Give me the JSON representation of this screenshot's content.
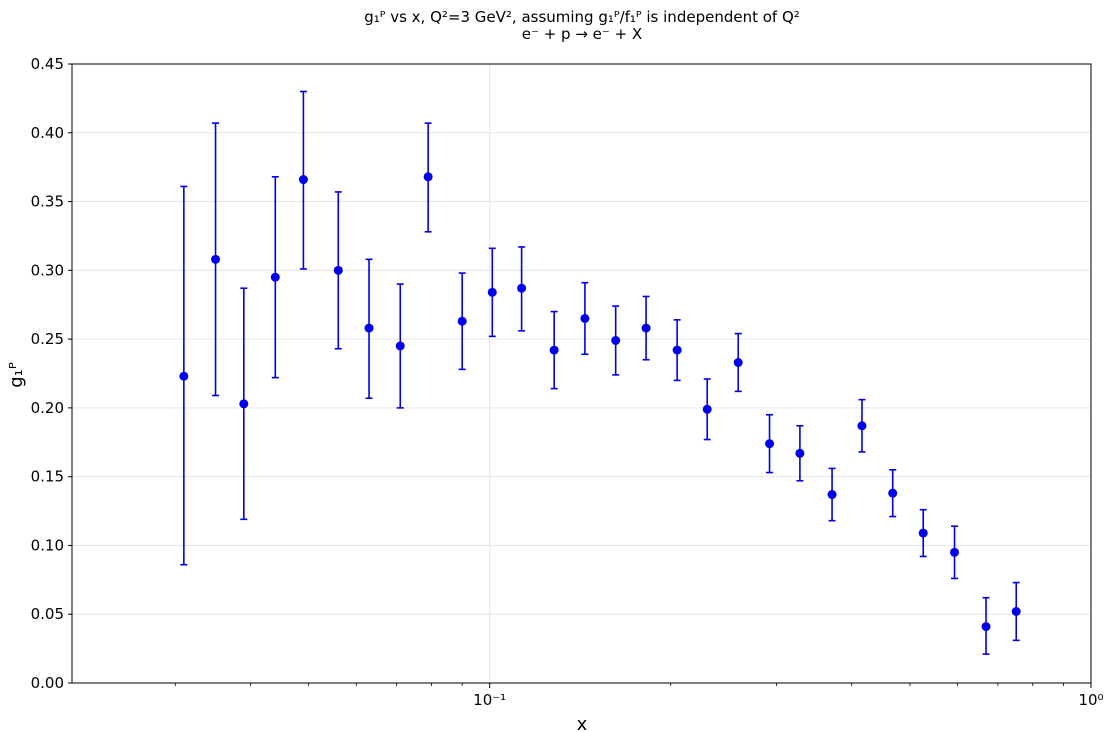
{
  "chart_data": {
    "type": "scatter",
    "title": "g₁ᴾ vs x, Q²=3 GeV², assuming g₁ᴾ/f₁ᴾ is independent of Q²",
    "subtitle": "e⁻ + p → e⁻ + X",
    "xlabel": "x",
    "ylabel": "g₁ᴾ",
    "xscale": "log",
    "xlim": [
      0.0202,
      1.0
    ],
    "ylim": [
      0.0,
      0.45
    ],
    "grid": true,
    "x_ticks": [
      {
        "value": 0.1,
        "label": "10⁻¹"
      },
      {
        "value": 1.0,
        "label": "10⁰"
      }
    ],
    "y_ticks": [
      {
        "value": 0.0,
        "label": "0.00"
      },
      {
        "value": 0.05,
        "label": "0.05"
      },
      {
        "value": 0.1,
        "label": "0.10"
      },
      {
        "value": 0.15,
        "label": "0.15"
      },
      {
        "value": 0.2,
        "label": "0.20"
      },
      {
        "value": 0.25,
        "label": "0.25"
      },
      {
        "value": 0.3,
        "label": "0.30"
      },
      {
        "value": 0.35,
        "label": "0.35"
      },
      {
        "value": 0.4,
        "label": "0.40"
      },
      {
        "value": 0.45,
        "label": "0.45"
      }
    ],
    "color": "#0000ee",
    "series": [
      {
        "points": [
          {
            "x": 0.031,
            "y": 0.223,
            "lo": 0.086,
            "hi": 0.361
          },
          {
            "x": 0.035,
            "y": 0.308,
            "lo": 0.209,
            "hi": 0.407
          },
          {
            "x": 0.039,
            "y": 0.203,
            "lo": 0.119,
            "hi": 0.287
          },
          {
            "x": 0.044,
            "y": 0.295,
            "lo": 0.222,
            "hi": 0.368
          },
          {
            "x": 0.049,
            "y": 0.366,
            "lo": 0.301,
            "hi": 0.43
          },
          {
            "x": 0.056,
            "y": 0.3,
            "lo": 0.243,
            "hi": 0.357
          },
          {
            "x": 0.063,
            "y": 0.258,
            "lo": 0.207,
            "hi": 0.308
          },
          {
            "x": 0.071,
            "y": 0.245,
            "lo": 0.2,
            "hi": 0.29
          },
          {
            "x": 0.079,
            "y": 0.368,
            "lo": 0.328,
            "hi": 0.407
          },
          {
            "x": 0.09,
            "y": 0.263,
            "lo": 0.228,
            "hi": 0.298
          },
          {
            "x": 0.101,
            "y": 0.284,
            "lo": 0.252,
            "hi": 0.316
          },
          {
            "x": 0.113,
            "y": 0.287,
            "lo": 0.256,
            "hi": 0.317
          },
          {
            "x": 0.128,
            "y": 0.242,
            "lo": 0.214,
            "hi": 0.27
          },
          {
            "x": 0.144,
            "y": 0.265,
            "lo": 0.239,
            "hi": 0.291
          },
          {
            "x": 0.162,
            "y": 0.249,
            "lo": 0.224,
            "hi": 0.274
          },
          {
            "x": 0.182,
            "y": 0.258,
            "lo": 0.235,
            "hi": 0.281
          },
          {
            "x": 0.205,
            "y": 0.242,
            "lo": 0.22,
            "hi": 0.264
          },
          {
            "x": 0.23,
            "y": 0.199,
            "lo": 0.177,
            "hi": 0.221
          },
          {
            "x": 0.259,
            "y": 0.233,
            "lo": 0.212,
            "hi": 0.254
          },
          {
            "x": 0.292,
            "y": 0.174,
            "lo": 0.153,
            "hi": 0.195
          },
          {
            "x": 0.328,
            "y": 0.167,
            "lo": 0.147,
            "hi": 0.187
          },
          {
            "x": 0.371,
            "y": 0.137,
            "lo": 0.118,
            "hi": 0.156
          },
          {
            "x": 0.416,
            "y": 0.187,
            "lo": 0.168,
            "hi": 0.206
          },
          {
            "x": 0.468,
            "y": 0.138,
            "lo": 0.121,
            "hi": 0.155
          },
          {
            "x": 0.526,
            "y": 0.109,
            "lo": 0.092,
            "hi": 0.126
          },
          {
            "x": 0.593,
            "y": 0.095,
            "lo": 0.076,
            "hi": 0.114
          },
          {
            "x": 0.669,
            "y": 0.041,
            "lo": 0.021,
            "hi": 0.062
          },
          {
            "x": 0.751,
            "y": 0.052,
            "lo": 0.031,
            "hi": 0.073
          }
        ]
      }
    ]
  }
}
